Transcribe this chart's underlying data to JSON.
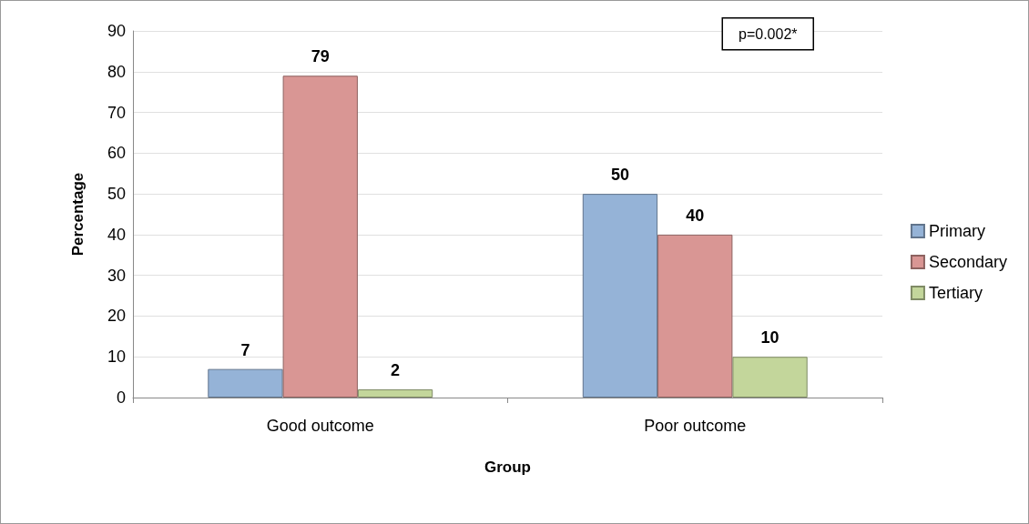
{
  "chart_data": {
    "type": "bar",
    "xlabel": "Group",
    "ylabel": "Percentage",
    "categories": [
      "Good outcome",
      "Poor outcome"
    ],
    "series": [
      {
        "name": "Primary",
        "color": "#95b3d7",
        "values": [
          7,
          50
        ]
      },
      {
        "name": "Secondary",
        "color": "#d99694",
        "values": [
          79,
          40
        ]
      },
      {
        "name": "Tertiary",
        "color": "#c3d69b",
        "values": [
          2,
          10
        ]
      }
    ],
    "ylim": [
      0,
      90
    ],
    "yticks": [
      0,
      10,
      20,
      30,
      40,
      50,
      60,
      70,
      80,
      90
    ],
    "grid": "y",
    "legend": "right",
    "data_labels": true,
    "annotations": [
      "p=0.002*"
    ]
  }
}
